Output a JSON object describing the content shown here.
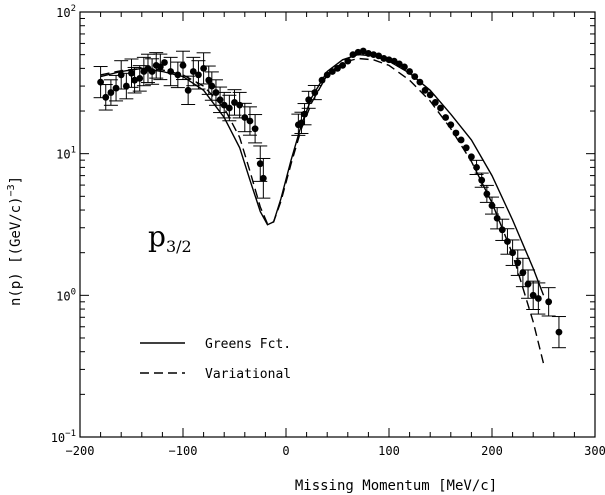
{
  "chart_data": {
    "type": "scatter",
    "xlabel": "Missing Momentum [MeV/c]",
    "ylabel": "n(p) [(GeV/c)⁻³]",
    "ylabel_base": "n(p) [(GeV/c)",
    "ylabel_exp": "−3",
    "ylabel_close": "]",
    "xlim": [
      -200,
      300
    ],
    "ylim": [
      0.1,
      100
    ],
    "yscale": "log",
    "grid": false,
    "annotation": {
      "main": "p",
      "sub": "3/2"
    },
    "x_ticks": [
      {
        "value": -200,
        "label": "−200"
      },
      {
        "value": -100,
        "label": "−100"
      },
      {
        "value": 0,
        "label": "0"
      },
      {
        "value": 100,
        "label": "100"
      },
      {
        "value": 200,
        "label": "200"
      },
      {
        "value": 300,
        "label": "300"
      }
    ],
    "y_ticks": [
      {
        "value": 0.1,
        "base": "10",
        "exp": "−1"
      },
      {
        "value": 1,
        "base": "10",
        "exp": "0"
      },
      {
        "value": 10,
        "base": "10",
        "exp": "1"
      },
      {
        "value": 100,
        "base": "10",
        "exp": "2"
      }
    ],
    "legend": {
      "position": "lower-left",
      "entries": [
        {
          "name": "Greens Fct.",
          "style": "solid"
        },
        {
          "name": "Variational",
          "style": "dashed"
        }
      ]
    },
    "series": [
      {
        "name": "Greens Fct.",
        "kind": "line",
        "style": "solid",
        "x": [
          -180,
          -160,
          -140,
          -120,
          -100,
          -80,
          -60,
          -45,
          -35,
          -25,
          -18,
          -12,
          -5,
          5,
          15,
          25,
          40,
          55,
          70,
          85,
          100,
          120,
          140,
          160,
          180,
          200,
          220,
          240,
          250
        ],
        "y": [
          35,
          38,
          40,
          38,
          35,
          28,
          18,
          11,
          6.5,
          3.9,
          3.15,
          3.3,
          4.8,
          9,
          16,
          25,
          38,
          46,
          50,
          49,
          45,
          37,
          28,
          19,
          12.5,
          7,
          3.4,
          1.55,
          1.0
        ]
      },
      {
        "name": "Variational",
        "kind": "line",
        "style": "dashed",
        "x": [
          -180,
          -160,
          -140,
          -120,
          -100,
          -80,
          -60,
          -45,
          -35,
          -25,
          -18,
          -12,
          -5,
          5,
          15,
          25,
          40,
          55,
          70,
          85,
          100,
          120,
          140,
          160,
          180,
          200,
          220,
          240,
          250
        ],
        "y": [
          36,
          38.5,
          40,
          39,
          36,
          30,
          21,
          13,
          7.5,
          4.2,
          3.2,
          3.3,
          4.6,
          8.5,
          15,
          23,
          36,
          44,
          47,
          46,
          42,
          33,
          23.5,
          15,
          8.8,
          4.5,
          1.95,
          0.65,
          0.33
        ]
      },
      {
        "name": "",
        "kind": "points",
        "x": [
          -180,
          -175,
          -170,
          -165,
          -160,
          -155,
          -150,
          -147,
          -142,
          -138,
          -134,
          -130,
          -126,
          -122,
          -118,
          -112,
          -105,
          -100,
          -95,
          -90,
          -85,
          -80,
          -75,
          -72,
          -68,
          -64,
          -60,
          -55,
          -50,
          -45,
          -40,
          -35,
          -30,
          -25,
          -22,
          12,
          15,
          18,
          22,
          28,
          35,
          40,
          45,
          50,
          55,
          60,
          65,
          70,
          75,
          80,
          85,
          90,
          95,
          100,
          105,
          110,
          115,
          120,
          125,
          130,
          135,
          140,
          145,
          150,
          155,
          160,
          165,
          170,
          175,
          180,
          185,
          190,
          195,
          200,
          205,
          210,
          215,
          220,
          225,
          230,
          235,
          240,
          245,
          255,
          265
        ],
        "y": [
          32,
          25,
          27,
          29,
          36,
          30,
          37,
          33,
          34,
          38,
          40,
          38,
          42,
          41,
          44,
          38,
          36,
          42,
          28,
          38,
          36,
          40,
          33,
          30,
          27,
          24,
          22,
          21,
          23,
          22,
          18,
          17,
          15,
          8.5,
          6.7,
          16,
          16.5,
          19,
          24,
          27,
          33,
          36,
          38,
          40,
          42,
          45,
          50,
          52,
          53,
          51,
          50,
          49,
          47,
          46,
          45,
          43,
          41,
          38,
          35,
          32,
          28,
          26,
          23,
          21,
          18,
          16,
          14,
          12.5,
          11,
          9.5,
          8,
          6.5,
          5.2,
          4.3,
          3.5,
          2.9,
          2.4,
          2.0,
          1.7,
          1.45,
          1.2,
          1.0,
          0.95,
          0.9,
          0.55
        ],
        "err_y": [
          0.22,
          0.18,
          0.18,
          0.18,
          0.2,
          0.18,
          0.2,
          0.18,
          0.18,
          0.2,
          0.2,
          0.18,
          0.18,
          0.18,
          0,
          0.2,
          0.18,
          0.2,
          0.2,
          0.2,
          0.2,
          0.22,
          0.2,
          0.2,
          0.18,
          0.18,
          0.18,
          0.18,
          0.18,
          0.18,
          0.2,
          0.2,
          0.2,
          0.25,
          0.28,
          0.15,
          0.15,
          0.15,
          0.12,
          0.1,
          0,
          0,
          0,
          0,
          0,
          0,
          0,
          0,
          0,
          0,
          0,
          0,
          0,
          0,
          0,
          0,
          0,
          0,
          0,
          0,
          0,
          0,
          0,
          0,
          0,
          0,
          0,
          0,
          0,
          0,
          0.1,
          0.1,
          0.12,
          0.12,
          0.15,
          0.15,
          0.18,
          0.18,
          0.18,
          0.2,
          0.2,
          0.2,
          0.22,
          0.2,
          0.22
        ]
      }
    ]
  }
}
